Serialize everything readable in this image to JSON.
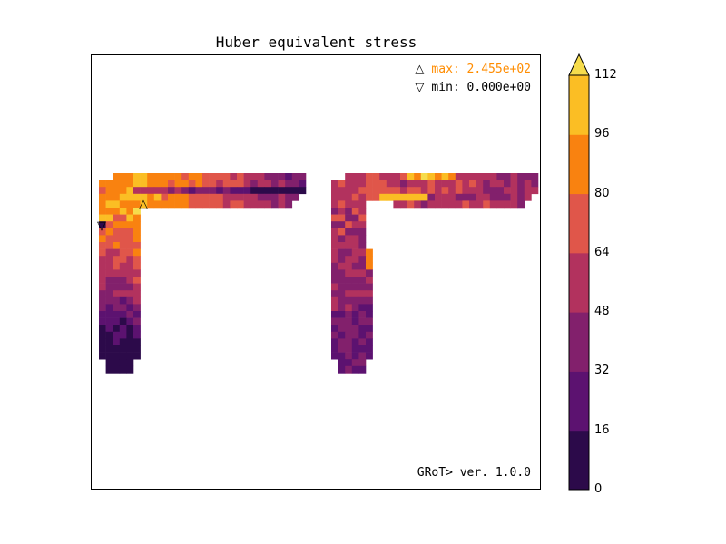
{
  "chart_data": {
    "type": "heatmap",
    "title": "Huber equivalent stress",
    "legend": {
      "max_label": "max: 2.455e+02",
      "min_label": "min: 0.000e+00",
      "max_symbol": "△",
      "min_symbol": "▽"
    },
    "footer": "GRoT> ver. 1.0.0",
    "colorbar": {
      "ticks": [
        "0",
        "16",
        "32",
        "48",
        "64",
        "80",
        "96",
        "112"
      ],
      "range": [
        0,
        112
      ],
      "extend": "max",
      "colors": [
        "#2c0a4a",
        "#5c1270",
        "#82206c",
        "#b2325e",
        "#e0564a",
        "#f98210",
        "#fbbe24",
        "#f6dc4c"
      ]
    },
    "grid": false
  }
}
